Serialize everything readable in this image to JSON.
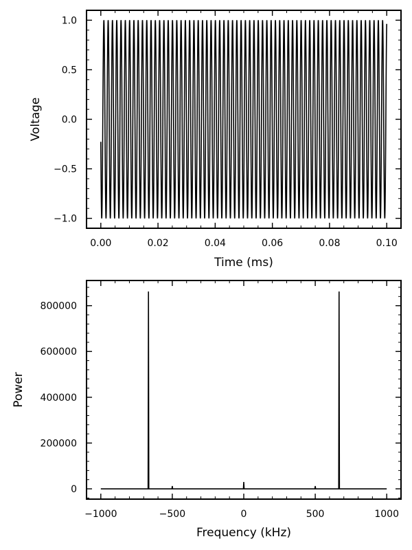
{
  "chart_data": [
    {
      "type": "line",
      "xlabel": "Time (ms)",
      "ylabel": "Voltage",
      "xlim": [
        -0.005,
        0.105
      ],
      "ylim": [
        -1.1,
        1.1
      ],
      "x_ticks": [
        0.0,
        0.02,
        0.04,
        0.06,
        0.08,
        0.1
      ],
      "x_tick_labels": [
        "0.00",
        "0.02",
        "0.04",
        "0.06",
        "0.08",
        "0.10"
      ],
      "y_ticks": [
        -1.0,
        -0.5,
        0.0,
        0.5,
        1.0
      ],
      "y_tick_labels": [
        "−1.0",
        "−0.5",
        "0.0",
        "0.5",
        "1.0"
      ],
      "x_minor_step": 0.005,
      "y_minor_step": 0.1,
      "grid": false,
      "series": [
        {
          "signal": "cosine",
          "frequency_khz": 666.7,
          "amplitude": 1.0,
          "phase_rad": 1.8,
          "x_range": [
            0.0,
            0.1
          ],
          "color": "#000000"
        }
      ]
    },
    {
      "type": "line",
      "xlabel": "Frequency (kHz)",
      "ylabel": "Power",
      "xlim": [
        -1100,
        1100
      ],
      "ylim": [
        -45000,
        910000
      ],
      "x_ticks": [
        -1000,
        -500,
        0,
        500,
        1000
      ],
      "x_tick_labels": [
        "−1000",
        "−500",
        "0",
        "500",
        "1000"
      ],
      "y_ticks": [
        0,
        200000,
        400000,
        600000,
        800000
      ],
      "y_tick_labels": [
        "0",
        "200000",
        "400000",
        "600000",
        "800000"
      ],
      "x_minor_step": 100,
      "y_minor_step": 40000,
      "grid": false,
      "series": [
        {
          "x_range": [
            -1000,
            1000
          ],
          "baseline": 0,
          "peaks": [
            {
              "x": -666.7,
              "y": 862000
            },
            {
              "x": -500,
              "y": 12000
            },
            {
              "x": 0,
              "y": 30000
            },
            {
              "x": 500,
              "y": 12000
            },
            {
              "x": 666.7,
              "y": 862000
            }
          ],
          "color": "#000000"
        }
      ]
    }
  ]
}
